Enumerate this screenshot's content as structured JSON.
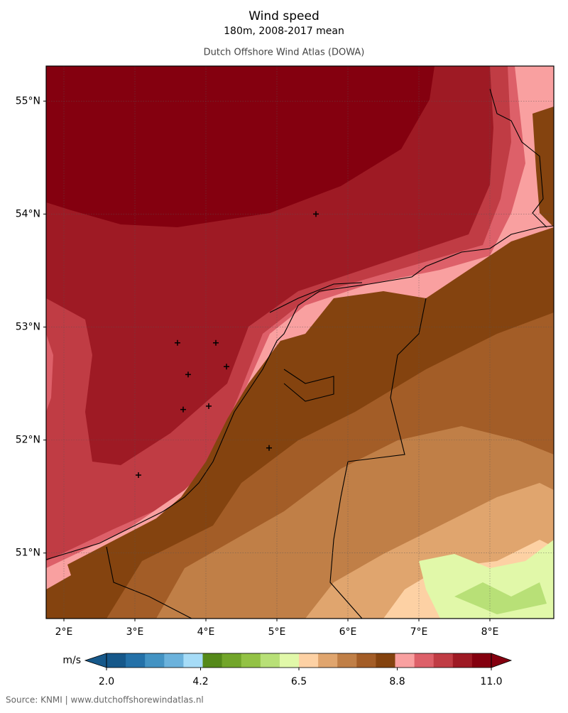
{
  "map": {
    "title": "Wind speed",
    "subtitle": "180m, 2008-2017 mean",
    "source_title": "Dutch Offshore Wind Atlas (DOWA)",
    "xlim": [
      1.75,
      8.9
    ],
    "ylim": [
      50.42,
      55.31
    ],
    "xticks": [
      {
        "value": 2,
        "label": "2°E"
      },
      {
        "value": 3,
        "label": "3°E"
      },
      {
        "value": 4,
        "label": "4°E"
      },
      {
        "value": 5,
        "label": "5°E"
      },
      {
        "value": 6,
        "label": "6°E"
      },
      {
        "value": 7,
        "label": "7°E"
      },
      {
        "value": 8,
        "label": "8°E"
      }
    ],
    "yticks": [
      {
        "value": 51,
        "label": "51°N"
      },
      {
        "value": 52,
        "label": "52°N"
      },
      {
        "value": 53,
        "label": "53°N"
      },
      {
        "value": 54,
        "label": "54°N"
      },
      {
        "value": 55,
        "label": "55°N"
      }
    ],
    "markers": {
      "lon": [
        5.55,
        3.6,
        4.14,
        3.75,
        4.29,
        3.68,
        4.04,
        4.89,
        3.05
      ],
      "lat": [
        54.0,
        52.86,
        52.86,
        52.58,
        52.65,
        52.27,
        52.3,
        51.93,
        51.69
      ]
    },
    "colorbar": {
      "unit": "m/s",
      "lim": [
        2,
        11
      ],
      "ticks": [
        {
          "value": 2,
          "label": "2.0"
        },
        {
          "value": 4.2,
          "label": "4.2"
        },
        {
          "value": 6.5,
          "label": "6.5"
        },
        {
          "value": 8.8,
          "label": "8.8"
        },
        {
          "value": 11,
          "label": "11.0"
        }
      ],
      "colors": [
        "#16588a",
        "#2471a8",
        "#4393c3",
        "#6bb2dc",
        "#a6dcf7",
        "#55891a",
        "#72a52a",
        "#93c245",
        "#b8e077",
        "#e1f8a9",
        "#fdd1a4",
        "#e0a56e",
        "#c07f47",
        "#a35d27",
        "#84430f",
        "#f9a0a0",
        "#dd6069",
        "#c03c44",
        "#9e1a24",
        "#84000f"
      ]
    },
    "footer": "Source: KNMI | www.dutchoffshorewindatlas.nl"
  }
}
